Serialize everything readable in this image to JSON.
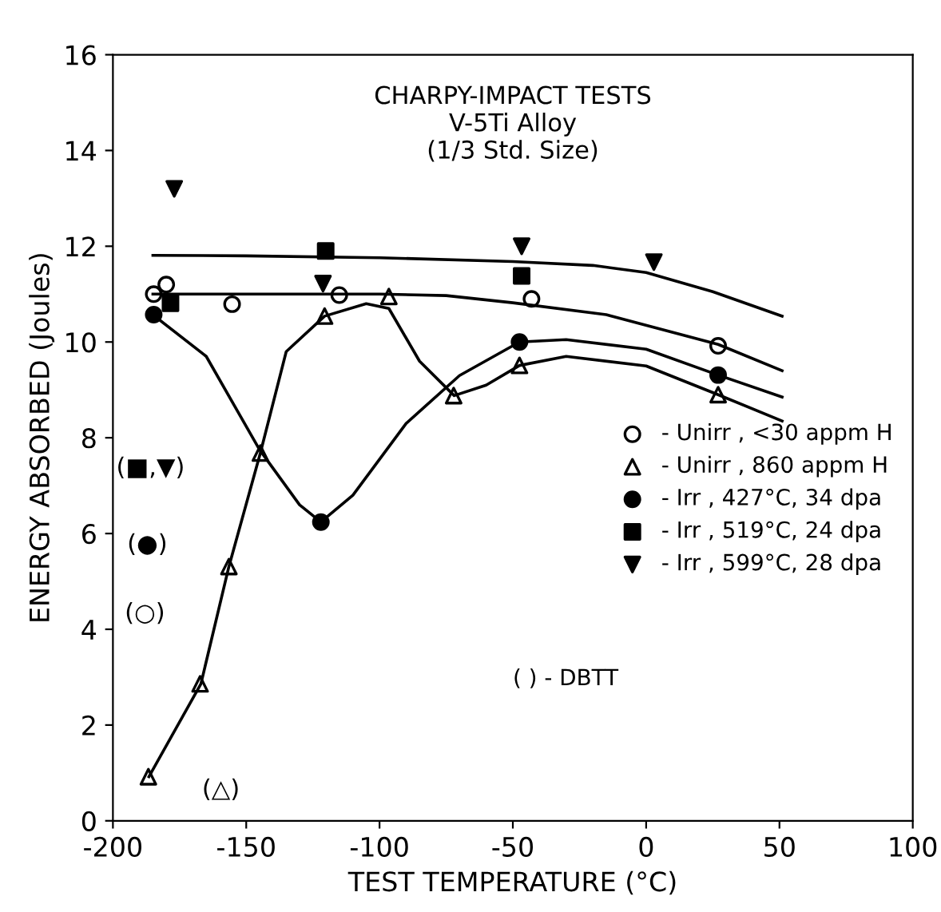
{
  "chart_data": {
    "type": "scatter",
    "title": "CHARPY-IMPACT TESTS\nV-5Ti Alloy\n(1/3 Std. Size)",
    "xlabel": "TEST TEMPERATURE (°C)",
    "ylabel": "ENERGY ABSORBED (Joules)",
    "xlim": [
      -200,
      100
    ],
    "ylim": [
      0,
      16
    ],
    "xticks": [
      -200,
      -150,
      -100,
      -50,
      0,
      50,
      100
    ],
    "yticks": [
      0,
      2,
      4,
      6,
      8,
      10,
      12,
      14,
      16
    ],
    "grid": false,
    "legend": "right",
    "series": [
      {
        "name": "- Unirr , <30 appm H",
        "color": "#000000",
        "marker": "circle-open",
        "x": [
          -184.7,
          -180,
          -155.3,
          -115.1,
          -43,
          27
        ],
        "values": [
          11.0,
          11.2,
          10.79,
          10.98,
          10.9,
          9.92
        ]
      },
      {
        "name": "- Unirr , 860 appm H",
        "color": "#000000",
        "marker": "triangle-open",
        "x": [
          -186.7,
          -167.3,
          -156.5,
          -144.7,
          -120.6,
          -96.5,
          -72.2,
          -47.5,
          27
        ],
        "values": [
          0.92,
          2.86,
          5.31,
          7.68,
          10.54,
          10.95,
          8.88,
          9.51,
          8.9
        ]
      },
      {
        "name": "- Irr , 427°C, 34 dpa",
        "color": "#000000",
        "marker": "circle",
        "x": [
          -184.7,
          -122,
          -47.5,
          27
        ],
        "values": [
          10.57,
          6.24,
          10.0,
          9.31
        ]
      },
      {
        "name": "- Irr , 519°C, 24 dpa",
        "color": "#000000",
        "marker": "square",
        "x": [
          -178.4,
          -120.2,
          -46.7
        ],
        "values": [
          10.81,
          11.9,
          11.38
        ]
      },
      {
        "name": "- Irr , 599°C, 28 dpa",
        "color": "#000000",
        "marker": "triangle_down",
        "x": [
          -177,
          -121.2,
          -46.7,
          2.9
        ],
        "values": [
          13.2,
          11.22,
          12.0,
          11.67
        ]
      },
      {
        "type": "line",
        "color": "#000000",
        "x": [
          -185,
          -150,
          -100,
          -50,
          -20,
          0,
          25,
          51
        ],
        "values": [
          11.81,
          11.8,
          11.76,
          11.68,
          11.6,
          11.45,
          11.05,
          10.54
        ]
      },
      {
        "type": "line",
        "color": "#000000",
        "x": [
          -185,
          -150,
          -100,
          -75,
          -50,
          -15,
          27,
          51
        ],
        "values": [
          11.0,
          11.0,
          11.0,
          10.97,
          10.82,
          10.57,
          9.95,
          9.4
        ]
      },
      {
        "type": "line",
        "color": "#000000",
        "x": [
          -185,
          -165,
          -145,
          -130,
          -122,
          -110,
          -90,
          -70,
          -47.5,
          -30,
          0,
          27,
          51
        ],
        "values": [
          10.57,
          9.7,
          7.75,
          6.6,
          6.24,
          6.8,
          8.3,
          9.3,
          10.0,
          10.05,
          9.85,
          9.31,
          8.85
        ]
      },
      {
        "type": "line",
        "color": "#000000",
        "x": [
          -186.5,
          -167,
          -156.5,
          -144.7,
          -135,
          -120.6,
          -105,
          -96.5,
          -85,
          -72,
          -60,
          -47.5,
          -30,
          0,
          27,
          51
        ],
        "values": [
          0.92,
          2.86,
          5.31,
          7.68,
          9.8,
          10.54,
          10.8,
          10.7,
          9.6,
          8.88,
          9.1,
          9.51,
          9.7,
          9.5,
          8.9,
          8.35
        ]
      }
    ],
    "annotations": [
      "(■,▼)",
      "(●)",
      "(○)",
      "(△)",
      "( ) - DBTT"
    ]
  }
}
